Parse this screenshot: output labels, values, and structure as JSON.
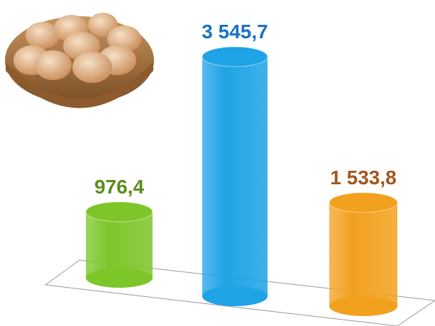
{
  "chart_data": {
    "type": "cylinder",
    "values": [
      976.4,
      3545.7,
      1533.8
    ],
    "value_labels": [
      "976,4",
      "3 545,7",
      "1 533,8"
    ],
    "colors": [
      "#7cc62a",
      "#1ea3e6",
      "#f2a11e"
    ],
    "label_colors": [
      "#5b8c1d",
      "#1b72c2",
      "#a3561b"
    ]
  }
}
